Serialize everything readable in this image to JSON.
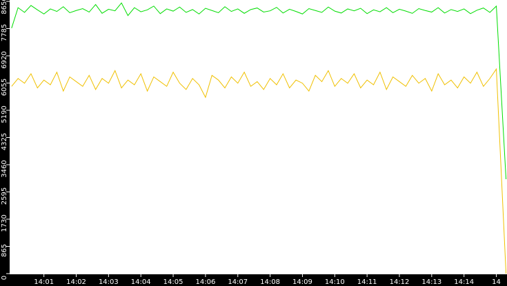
{
  "chart_data": {
    "type": "line",
    "x": [
      840,
      840.2,
      840.4,
      840.6,
      840.8,
      841,
      841.2,
      841.4,
      841.6,
      841.8,
      842,
      842.2,
      842.4,
      842.6,
      842.8,
      843,
      843.2,
      843.4,
      843.6,
      843.8,
      844,
      844.2,
      844.4,
      844.6,
      844.8,
      845,
      845.2,
      845.4,
      845.6,
      845.8,
      846,
      846.2,
      846.4,
      846.6,
      846.8,
      847,
      847.2,
      847.4,
      847.6,
      847.8,
      848,
      848.2,
      848.4,
      848.6,
      848.8,
      849,
      849.2,
      849.4,
      849.6,
      849.8,
      850,
      850.2,
      850.4,
      850.6,
      850.8,
      851,
      851.2,
      851.4,
      851.6,
      851.8,
      852,
      852.2,
      852.4,
      852.6,
      852.8,
      853,
      853.2,
      853.4,
      853.6,
      853.8,
      854,
      854.2,
      854.4,
      854.6,
      854.8,
      855,
      855.3
    ],
    "series": [
      {
        "color": "#00dd00",
        "values": [
          7800,
          8450,
          8300,
          8520,
          8380,
          8250,
          8410,
          8330,
          8480,
          8290,
          8360,
          8420,
          8310,
          8550,
          8270,
          8400,
          8350,
          8600,
          8200,
          8450,
          8320,
          8380,
          8500,
          8260,
          8410,
          8340,
          8470,
          8300,
          8390,
          8250,
          8430,
          8360,
          8290,
          8480,
          8330,
          8410,
          8270,
          8390,
          8440,
          8310,
          8350,
          8460,
          8280,
          8400,
          8330,
          8250,
          8420,
          8360,
          8300,
          8470,
          8340,
          8280,
          8410,
          8350,
          8430,
          8260,
          8380,
          8320,
          8450,
          8290,
          8400,
          8340,
          8270,
          8420,
          8360,
          8310,
          8450,
          8280,
          8390,
          8330,
          8410,
          8260,
          8370,
          8440,
          8300,
          8500,
          3000
        ]
      },
      {
        "color": "#f0c000",
        "values": [
          5950,
          6200,
          6050,
          6350,
          5900,
          6150,
          6000,
          6400,
          5800,
          6250,
          6100,
          5950,
          6300,
          5850,
          6200,
          6050,
          6450,
          5900,
          6150,
          6000,
          6350,
          5800,
          6250,
          6100,
          5950,
          6400,
          6050,
          5850,
          6200,
          6000,
          5600,
          6300,
          6150,
          5900,
          6250,
          6050,
          6400,
          5950,
          6100,
          5850,
          6200,
          6000,
          6350,
          5900,
          6150,
          6050,
          5800,
          6300,
          6100,
          6450,
          5950,
          6200,
          6050,
          6350,
          5900,
          6150,
          6000,
          6400,
          5850,
          6250,
          6100,
          5950,
          6300,
          6050,
          6200,
          5800,
          6350,
          6000,
          6150,
          5900,
          6250,
          6050,
          6400,
          5950,
          6200,
          6500,
          0
        ]
      }
    ],
    "xlim": [
      839.94,
      855.33
    ],
    "xticks": [
      {
        "value": 841,
        "label": "14:01"
      },
      {
        "value": 842,
        "label": "14:02"
      },
      {
        "value": 843,
        "label": "14:03"
      },
      {
        "value": 844,
        "label": "14:04"
      },
      {
        "value": 845,
        "label": "14:05"
      },
      {
        "value": 846,
        "label": "14:06"
      },
      {
        "value": 847,
        "label": "14:07"
      },
      {
        "value": 848,
        "label": "14:08"
      },
      {
        "value": 849,
        "label": "14:09"
      },
      {
        "value": 850,
        "label": "14:10"
      },
      {
        "value": 851,
        "label": "14:11"
      },
      {
        "value": 852,
        "label": "14:12"
      },
      {
        "value": 853,
        "label": "14:13"
      },
      {
        "value": 854,
        "label": "14:14"
      },
      {
        "value": 855,
        "label": "14"
      }
    ],
    "ylim": [
      0,
      8650
    ],
    "yticks": [
      0,
      865,
      1730,
      2595,
      3460,
      4325,
      5190,
      6055,
      6920,
      7785,
      8650
    ]
  }
}
